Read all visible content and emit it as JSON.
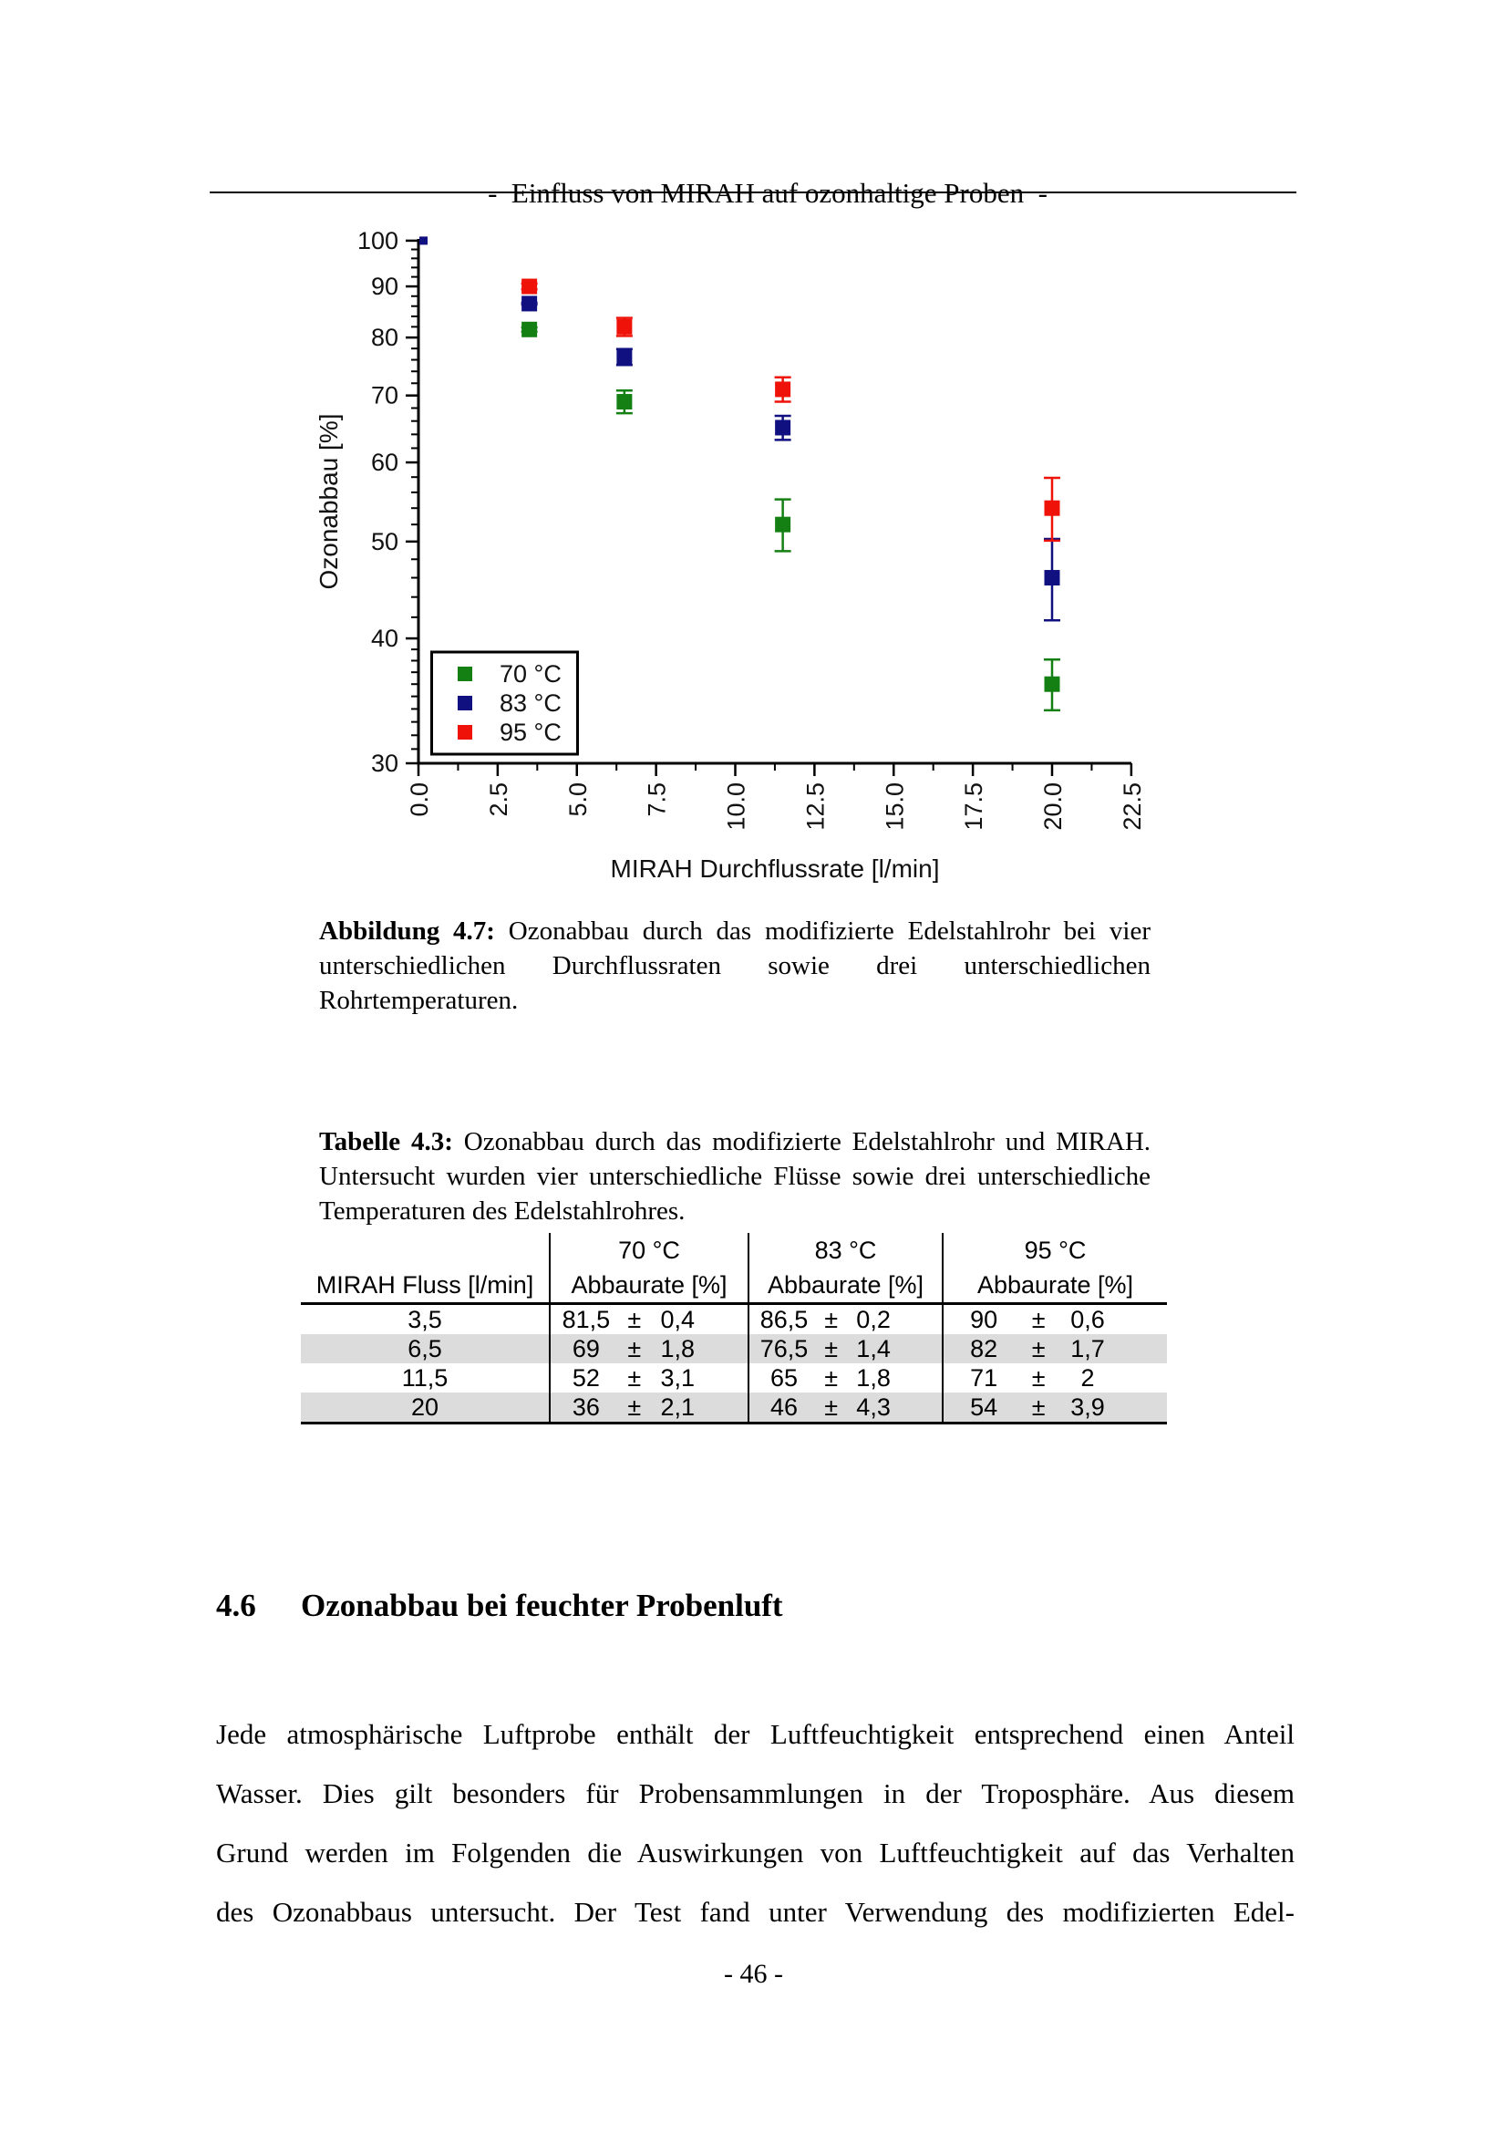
{
  "page": {
    "header_title": "-  Einfluss von MIRAH auf ozonhaltige Proben  -",
    "page_number": "- 46 -"
  },
  "figure_caption": {
    "bold": "Abbildung 4.7:",
    "line1_rest": "Ozonabbau durch das modifizierte Edelstahlrohr bei vier",
    "line2": "unterschiedlichen Durchflussraten sowie drei unterschiedlichen",
    "line3": "Rohrtemperaturen."
  },
  "table_caption": {
    "bold": "Tabelle 4.3:",
    "line1_rest": "Ozonabbau durch das modifizierte Edelstahlrohr und MIRAH.",
    "line2": "Untersucht wurden vier unterschiedliche Flüsse sowie drei unterschiedliche",
    "line3": "Temperaturen des Edelstahlrohres."
  },
  "table": {
    "temp_headers": [
      "70 °C",
      "83 °C",
      "95 °C"
    ],
    "col1_header": "MIRAH Fluss [l/min]",
    "sub_header": "Abbaurate [%]",
    "plus_minus": "±",
    "rows": [
      {
        "flow": "3,5",
        "shaded": false,
        "values": [
          [
            "81,5",
            "0,4"
          ],
          [
            "86,5",
            "0,2"
          ],
          [
            "90",
            "0,6"
          ]
        ]
      },
      {
        "flow": "6,5",
        "shaded": true,
        "values": [
          [
            "69",
            "1,8"
          ],
          [
            "76,5",
            "1,4"
          ],
          [
            "82",
            "1,7"
          ]
        ]
      },
      {
        "flow": "11,5",
        "shaded": false,
        "values": [
          [
            "52",
            "3,1"
          ],
          [
            "65",
            "1,8"
          ],
          [
            "71",
            "2"
          ]
        ]
      },
      {
        "flow": "20",
        "shaded": true,
        "values": [
          [
            "36",
            "2,1"
          ],
          [
            "46",
            "4,3"
          ],
          [
            "54",
            "3,9"
          ]
        ]
      }
    ]
  },
  "section_heading": {
    "number": "4.6",
    "title": "Ozonabbau bei feuchter Probenluft"
  },
  "body_text": {
    "lines": [
      "Jede atmosphärische Luftprobe enthält der Luftfeuchtigkeit entsprechend einen Anteil",
      "Wasser. Dies gilt besonders für Probensammlungen in der Troposphäre. Aus diesem",
      "Grund werden im Folgenden die Auswirkungen von Luftfeuchtigkeit auf das Verhalten",
      "des Ozonabbaus untersucht. Der Test fand unter Verwendung des modifizierten Edel-"
    ]
  },
  "chart_data": {
    "type": "scatter",
    "title": "",
    "xlabel": "MIRAH Durchflussrate [l/min]",
    "ylabel": "Ozonabbau [%]",
    "xlim": [
      0,
      22.5
    ],
    "ylim": [
      30,
      100
    ],
    "y_scale": "log",
    "grid": false,
    "legend_position": "lower-left",
    "x_major_step": 2.5,
    "x_minor_step": 1.25,
    "x_major_ticks": [
      0.0,
      2.5,
      5.0,
      7.5,
      10.0,
      12.5,
      15.0,
      17.5,
      20.0,
      22.5
    ],
    "x_tick_labels": [
      "0.0",
      "2.5",
      "5.0",
      "7.5",
      "10.0",
      "12.5",
      "15.0",
      "17.5",
      "20.0",
      "22.5"
    ],
    "y_major_ticks": [
      30,
      40,
      50,
      60,
      70,
      80,
      90,
      100
    ],
    "y_minor_ticks": [
      31,
      32,
      33,
      34,
      35,
      36,
      37,
      38,
      39,
      42,
      44,
      46,
      48,
      52,
      54,
      56,
      58,
      62,
      64,
      66,
      68,
      72,
      74,
      76,
      78,
      82,
      84,
      86,
      88,
      92,
      94,
      96,
      98
    ],
    "series": [
      {
        "name": "70 °C",
        "color": "#148014",
        "x": [
          3.5,
          6.5,
          11.5,
          20
        ],
        "y": [
          81.5,
          69,
          52,
          36
        ],
        "yerr": [
          0.4,
          1.8,
          3.1,
          2.1
        ]
      },
      {
        "name": "83 °C",
        "color": "#101080",
        "x": [
          3.5,
          6.5,
          11.5,
          20
        ],
        "y": [
          86.5,
          76.5,
          65,
          46
        ],
        "yerr": [
          0.2,
          1.4,
          1.8,
          4.3
        ]
      },
      {
        "name": "95 °C",
        "color": "#ee1208",
        "x": [
          3.5,
          6.5,
          11.5,
          20
        ],
        "y": [
          90,
          82,
          71,
          54
        ],
        "yerr": [
          0.6,
          1.7,
          2.0,
          3.9
        ]
      }
    ],
    "origin_point": {
      "x": 0.0,
      "y": 100,
      "color": "#101080"
    }
  }
}
